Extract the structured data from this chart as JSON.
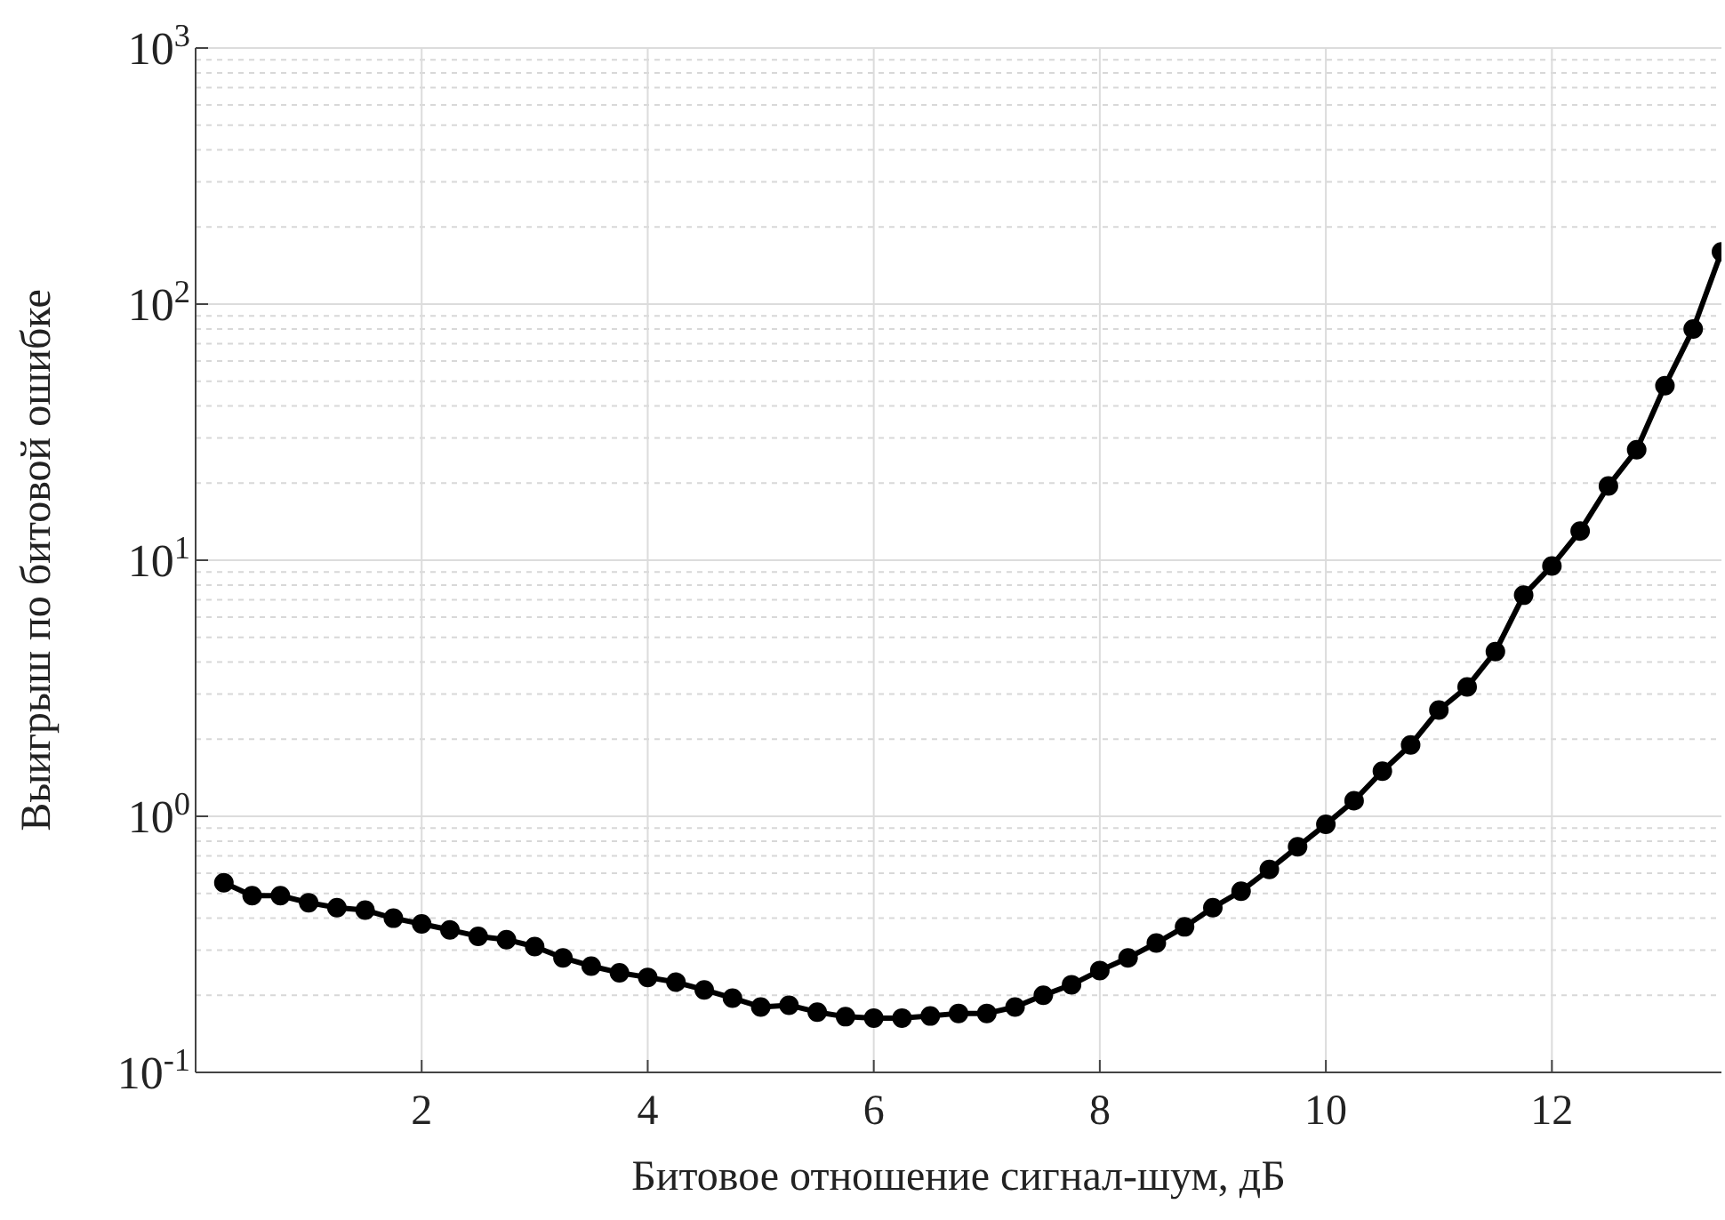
{
  "chart_data": {
    "type": "line",
    "xlabel": "Битовое отношение сигнал-шум, дБ",
    "ylabel": "Выигрыш по битовой ошибке",
    "log": "y",
    "grid": true,
    "marker": "circle",
    "line_style": "solid",
    "xlim": [
      0,
      13.5
    ],
    "xticks": [
      2,
      4,
      6,
      8,
      10,
      12
    ],
    "ylim": [
      0.1,
      1000
    ],
    "yticks": [
      {
        "value": 0.1,
        "label": "10$^{-1}$"
      },
      {
        "value": 1,
        "label": "10$^{0}$"
      },
      {
        "value": 10,
        "label": "10$^{1}$"
      },
      {
        "value": 100,
        "label": "10$^{2}$"
      },
      {
        "value": 1000,
        "label": "10$^{3}$"
      }
    ],
    "series": [
      {
        "color": "#000000",
        "x": [
          0.25,
          0.5,
          0.75,
          1,
          1.25,
          1.5,
          1.75,
          2,
          2.25,
          2.5,
          2.75,
          3,
          3.25,
          3.5,
          3.75,
          4,
          4.25,
          4.5,
          4.75,
          5,
          5.25,
          5.5,
          5.75,
          6,
          6.25,
          6.5,
          6.75,
          7,
          7.25,
          7.5,
          7.75,
          8,
          8.25,
          8.5,
          8.75,
          9,
          9.25,
          9.5,
          9.75,
          10,
          10.25,
          10.5,
          10.75,
          11,
          11.25,
          11.5,
          11.75,
          12,
          12.25,
          12.5,
          12.75,
          13,
          13.25,
          13.5
        ],
        "values": [
          0.55,
          0.49,
          0.49,
          0.46,
          0.44,
          0.43,
          0.4,
          0.38,
          0.36,
          0.34,
          0.33,
          0.31,
          0.28,
          0.26,
          0.245,
          0.235,
          0.225,
          0.21,
          0.195,
          0.18,
          0.183,
          0.172,
          0.165,
          0.163,
          0.163,
          0.166,
          0.17,
          0.17,
          0.18,
          0.2,
          0.22,
          0.25,
          0.28,
          0.32,
          0.37,
          0.44,
          0.51,
          0.62,
          0.76,
          0.93,
          1.15,
          1.5,
          1.9,
          2.6,
          3.2,
          4.4,
          7.3,
          9.5,
          13,
          19.5,
          27,
          48,
          80,
          160
        ]
      }
    ]
  }
}
